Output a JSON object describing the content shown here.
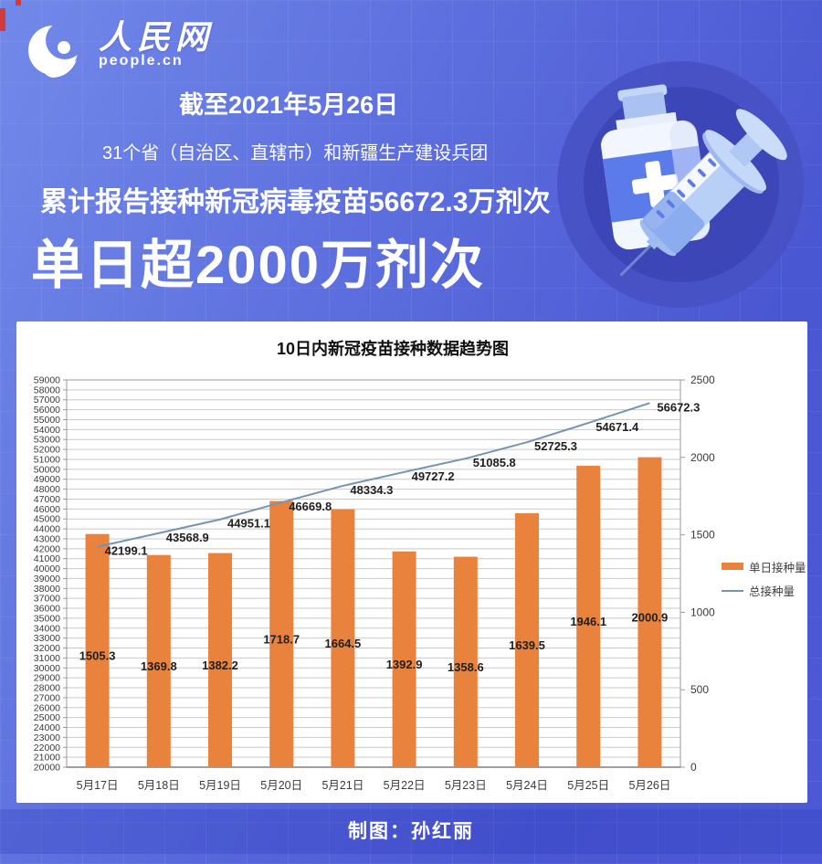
{
  "logo": {
    "name": "人民网",
    "domain": "people.cn"
  },
  "banner": {
    "date_line": "截至2021年5月26日",
    "scope_line": "31个省（自治区、直辖市）和新疆生产建设兵团",
    "cumulative_line": "累计报告接种新冠病毒疫苗56672.3万剂次",
    "headline": "单日超2000万剂次"
  },
  "footer": {
    "credit": "制图：孙红丽"
  },
  "colors": {
    "bar": "#E8823C",
    "line": "#7494B2",
    "grid": "#C9C9C9",
    "axis": "#9A9A9A",
    "tick_text": "#3A3A3A",
    "label_text": "#1F1F1F"
  },
  "chart_data": {
    "type": "combo (bar + line)",
    "title": "10日内新冠疫苗接种数据趋势图",
    "categories": [
      "5月17日",
      "5月18日",
      "5月19日",
      "5月20日",
      "5月21日",
      "5月22日",
      "5月23日",
      "5月24日",
      "5月25日",
      "5月26日"
    ],
    "series": [
      {
        "name": "单日接种量",
        "type": "bar",
        "axis": "right",
        "color": "#E8823C",
        "values": [
          1505.3,
          1369.8,
          1382.2,
          1718.7,
          1664.5,
          1392.9,
          1358.6,
          1639.5,
          1946.1,
          2000.9
        ]
      },
      {
        "name": "总接种量",
        "type": "line",
        "axis": "left",
        "color": "#7494B2",
        "values": [
          42199.1,
          43568.9,
          44951.1,
          46669.8,
          48334.3,
          49727.2,
          51085.8,
          52725.3,
          54671.4,
          56672.3
        ]
      }
    ],
    "left_axis": {
      "min": 20000,
      "max": 59000,
      "step": 1000
    },
    "right_axis": {
      "min": 0,
      "max": 2500,
      "step": 500
    },
    "grid": true,
    "legend_position": "right"
  }
}
